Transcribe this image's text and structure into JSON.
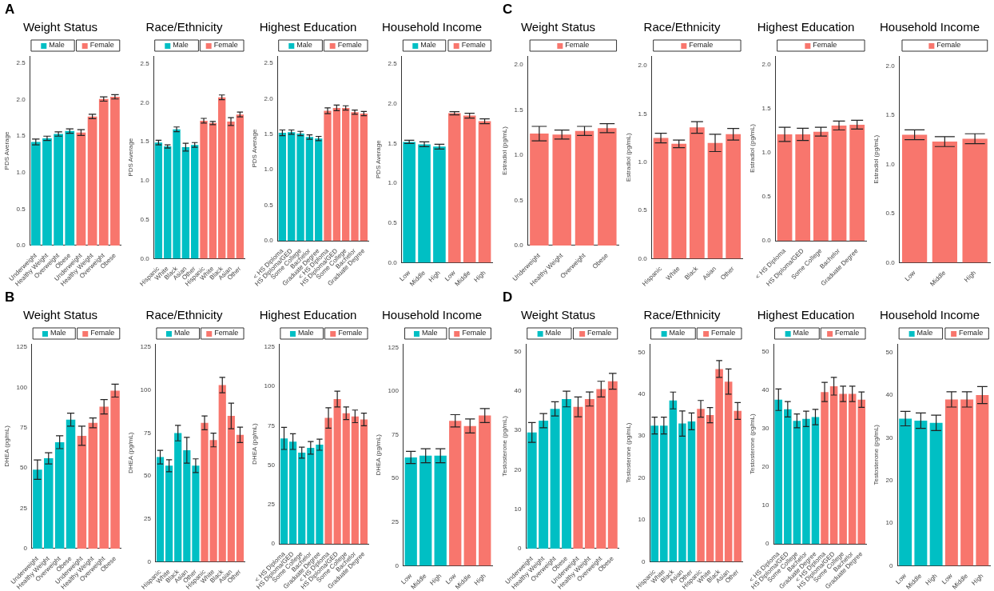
{
  "chart_data": [
    {
      "type": "bar",
      "title": "Weight Status",
      "ylabel": "PDS Average",
      "legend": "top",
      "annotations": [
        "A"
      ],
      "categories": [
        "Underweight",
        "Healthy Weight",
        "Overweight",
        "Obese",
        "Underweight",
        "Healthy Weight",
        "Overweight",
        "Obese"
      ],
      "ylim": [
        0,
        2.6
      ],
      "yticks": [
        {
          "value": 0,
          "label": "0.0"
        },
        0.5,
        {
          "value": 1,
          "label": "1.0"
        },
        1.5,
        {
          "value": 2,
          "label": "2.0"
        },
        2.5
      ],
      "series": [
        {
          "name": "Male",
          "color": "#00bfc4",
          "values": [
            1.42,
            1.47,
            1.53,
            1.57,
            null,
            null,
            null,
            null
          ],
          "errors": [
            0.04,
            0.03,
            0.03,
            0.03,
            null,
            null,
            null,
            null
          ]
        },
        {
          "name": "Female",
          "color": "#f8766d",
          "values": [
            null,
            null,
            null,
            null,
            1.55,
            1.77,
            2.01,
            2.04
          ],
          "errors": [
            null,
            null,
            null,
            null,
            0.04,
            0.03,
            0.03,
            0.03
          ]
        }
      ]
    },
    {
      "type": "bar",
      "title": "Race/Ethnicity",
      "ylabel": "PDS Average",
      "legend": "top",
      "categories": [
        "Hispanic",
        "White",
        "Black",
        "Asian",
        "Other",
        "Hispanic",
        "White",
        "Black",
        "Asian",
        "Other"
      ],
      "ylim": [
        0,
        2.6
      ],
      "yticks": [
        {
          "value": 0,
          "label": "0.0"
        },
        0.5,
        {
          "value": 1,
          "label": "1.0"
        },
        1.5,
        {
          "value": 2,
          "label": "2.0"
        },
        2.5
      ],
      "series": [
        {
          "name": "Male",
          "color": "#00bfc4",
          "values": [
            1.49,
            1.44,
            1.66,
            1.43,
            1.46,
            null,
            null,
            null,
            null,
            null
          ],
          "errors": [
            0.03,
            0.02,
            0.03,
            0.05,
            0.03,
            null,
            null,
            null,
            null,
            null
          ]
        },
        {
          "name": "Female",
          "color": "#f8766d",
          "values": [
            null,
            null,
            null,
            null,
            null,
            1.77,
            1.74,
            2.07,
            1.76,
            1.85
          ],
          "errors": [
            null,
            null,
            null,
            null,
            null,
            0.03,
            0.02,
            0.03,
            0.05,
            0.03
          ]
        }
      ]
    },
    {
      "type": "bar",
      "title": "Highest Education",
      "ylabel": "PDS Average",
      "legend": "top",
      "categories": [
        "< HS Diploma",
        "HS Diploma/GED",
        "Some College",
        "Bachelor",
        "Graduate Degree",
        "< HS Diploma",
        "HS Diploma/GED",
        "Some College",
        "Bachelor",
        "Graduate Degree"
      ],
      "ylim": [
        0,
        2.6
      ],
      "yticks": [
        {
          "value": 0,
          "label": "0.0"
        },
        0.5,
        {
          "value": 1,
          "label": "1.0"
        },
        1.5,
        {
          "value": 2,
          "label": "2.0"
        },
        2.5
      ],
      "series": [
        {
          "name": "Male",
          "color": "#00bfc4",
          "values": [
            1.52,
            1.53,
            1.51,
            1.46,
            1.44,
            null,
            null,
            null,
            null,
            null
          ],
          "errors": [
            0.04,
            0.03,
            0.03,
            0.03,
            0.03,
            null,
            null,
            null,
            null,
            null
          ]
        },
        {
          "name": "Female",
          "color": "#f8766d",
          "values": [
            null,
            null,
            null,
            null,
            null,
            1.83,
            1.87,
            1.87,
            1.81,
            1.79
          ],
          "errors": [
            null,
            null,
            null,
            null,
            null,
            0.04,
            0.04,
            0.03,
            0.03,
            0.03
          ]
        }
      ]
    },
    {
      "type": "bar",
      "title": "Household Income",
      "ylabel": "PDS Average",
      "legend": "top",
      "categories": [
        "Low",
        "Middle",
        "High",
        "Low",
        "Middle",
        "High"
      ],
      "ylim": [
        0,
        2.6
      ],
      "yticks": [
        {
          "value": 0,
          "label": "0.0"
        },
        0.5,
        {
          "value": 1,
          "label": "1.0"
        },
        1.5,
        {
          "value": 2,
          "label": "2.0"
        },
        2.5
      ],
      "series": [
        {
          "name": "Male",
          "color": "#00bfc4",
          "values": [
            1.52,
            1.49,
            1.46,
            null,
            null,
            null
          ],
          "errors": [
            0.02,
            0.03,
            0.03,
            null,
            null,
            null
          ]
        },
        {
          "name": "Female",
          "color": "#f8766d",
          "values": [
            null,
            null,
            null,
            1.88,
            1.85,
            1.78
          ],
          "errors": [
            null,
            null,
            null,
            0.02,
            0.03,
            0.03
          ]
        }
      ]
    },
    {
      "type": "bar",
      "title": "Weight Status",
      "ylabel": "Estradiol (pg/mL)",
      "legend": "top",
      "annotations": [
        "C"
      ],
      "categories": [
        "Underweight",
        "Healthy Weight",
        "Overweight",
        "Obese"
      ],
      "ylim": [
        0,
        2.1
      ],
      "yticks": [
        {
          "value": 0,
          "label": "0.0"
        },
        0.5,
        {
          "value": 1,
          "label": "1.0"
        },
        1.5,
        {
          "value": 2,
          "label": "2.0"
        }
      ],
      "series": [
        {
          "name": "Female",
          "color": "#f8766d",
          "values": [
            1.24,
            1.23,
            1.27,
            1.3
          ],
          "errors": [
            0.08,
            0.05,
            0.05,
            0.05
          ]
        }
      ]
    },
    {
      "type": "bar",
      "title": "Race/Ethnicity",
      "ylabel": "Estradiol (pg/mL)",
      "legend": "top",
      "categories": [
        "Hispanic",
        "White",
        "Black",
        "Asian",
        "Other"
      ],
      "ylim": [
        0,
        2.1
      ],
      "yticks": [
        {
          "value": 0,
          "label": "0.0"
        },
        0.5,
        {
          "value": 1,
          "label": "1.0"
        },
        1.5,
        {
          "value": 2,
          "label": "2.0"
        }
      ],
      "series": [
        {
          "name": "Female",
          "color": "#f8766d",
          "values": [
            1.25,
            1.19,
            1.36,
            1.2,
            1.29
          ],
          "errors": [
            0.05,
            0.04,
            0.06,
            0.09,
            0.06
          ]
        }
      ]
    },
    {
      "type": "bar",
      "title": "Highest Education",
      "ylabel": "Estradiol (pg/mL)",
      "legend": "top",
      "categories": [
        "< HS Diploma",
        "HS Diploma/GED",
        "Some College",
        "Bachelor",
        "Graduate Degree"
      ],
      "ylim": [
        0,
        2.1
      ],
      "yticks": [
        {
          "value": 0,
          "label": "0.0"
        },
        0.5,
        {
          "value": 1,
          "label": "1.0"
        },
        1.5,
        {
          "value": 2,
          "label": "2.0"
        }
      ],
      "series": [
        {
          "name": "Female",
          "color": "#f8766d",
          "values": [
            1.21,
            1.21,
            1.24,
            1.31,
            1.32
          ],
          "errors": [
            0.08,
            0.07,
            0.05,
            0.05,
            0.05
          ]
        }
      ]
    },
    {
      "type": "bar",
      "title": "Household Income",
      "ylabel": "Estradiol (pg/mL)",
      "legend": "top",
      "categories": [
        "Low",
        "Middle",
        "High"
      ],
      "ylim": [
        0,
        2.1
      ],
      "yticks": [
        {
          "value": 0,
          "label": "0.0"
        },
        0.5,
        {
          "value": 1,
          "label": "1.0"
        },
        1.5,
        {
          "value": 2,
          "label": "2.0"
        }
      ],
      "series": [
        {
          "name": "Female",
          "color": "#f8766d",
          "values": [
            1.3,
            1.23,
            1.26
          ],
          "errors": [
            0.05,
            0.05,
            0.05
          ]
        }
      ]
    },
    {
      "type": "bar",
      "title": "Weight Status",
      "ylabel": "DHEA (pg/mL)",
      "legend": "top",
      "annotations": [
        "B"
      ],
      "categories": [
        "Underweight",
        "Healthy Weight",
        "Overweight",
        "Obese",
        "Underweight",
        "Healthy Weight",
        "Overweight",
        "Obese"
      ],
      "ylim": [
        0,
        127
      ],
      "yticks": [
        0,
        25,
        50,
        75,
        100,
        125
      ],
      "series": [
        {
          "name": "Male",
          "color": "#00bfc4",
          "values": [
            49,
            56,
            66,
            80,
            null,
            null,
            null,
            null
          ],
          "errors": [
            6,
            3.5,
            4,
            4,
            null,
            null,
            null,
            null
          ]
        },
        {
          "name": "Female",
          "color": "#f8766d",
          "values": [
            null,
            null,
            null,
            null,
            70,
            78,
            88,
            98
          ],
          "errors": [
            null,
            null,
            null,
            null,
            6,
            3,
            4.5,
            4
          ]
        }
      ]
    },
    {
      "type": "bar",
      "title": "Race/Ethnicity",
      "ylabel": "DHEA (pg/mL)",
      "legend": "top",
      "categories": [
        "Hispanic",
        "White",
        "Black",
        "Asian",
        "Other",
        "Hispanic",
        "White",
        "Black",
        "Asian",
        "Other"
      ],
      "ylim": [
        0,
        127
      ],
      "yticks": [
        0,
        25,
        50,
        75,
        100,
        125
      ],
      "series": [
        {
          "name": "Male",
          "color": "#00bfc4",
          "values": [
            61,
            56,
            75,
            65,
            56,
            null,
            null,
            null,
            null,
            null
          ],
          "errors": [
            4,
            3.5,
            4.5,
            7.5,
            4,
            null,
            null,
            null,
            null,
            null
          ]
        },
        {
          "name": "Female",
          "color": "#f8766d",
          "values": [
            null,
            null,
            null,
            null,
            null,
            81,
            71,
            103,
            85,
            74
          ],
          "errors": [
            null,
            null,
            null,
            null,
            null,
            4,
            4,
            4.5,
            7.5,
            4.5
          ]
        }
      ]
    },
    {
      "type": "bar",
      "title": "Highest Education",
      "ylabel": "DHEA (pg/mL)",
      "legend": "top",
      "categories": [
        "< HS Diploma",
        "HS Diploma/GED",
        "Some College",
        "Bachelor",
        "Graduate Degree",
        "< HS Diploma",
        "HS Diploma/GED",
        "Some College",
        "Bachelor",
        "Graduate Degree"
      ],
      "ylim": [
        0,
        127
      ],
      "yticks": [
        0,
        25,
        50,
        75,
        100,
        125
      ],
      "series": [
        {
          "name": "Male",
          "color": "#00bfc4",
          "values": [
            67,
            65,
            58,
            61,
            63,
            null,
            null,
            null,
            null,
            null
          ],
          "errors": [
            7,
            5,
            3.5,
            4,
            3.5,
            null,
            null,
            null,
            null,
            null
          ]
        },
        {
          "name": "Female",
          "color": "#f8766d",
          "values": [
            null,
            null,
            null,
            null,
            null,
            80,
            92,
            83,
            81,
            79
          ],
          "errors": [
            null,
            null,
            null,
            null,
            null,
            6.5,
            5,
            4,
            4,
            4
          ]
        }
      ]
    },
    {
      "type": "bar",
      "title": "Household Income",
      "ylabel": "DHEA (pg/mL)",
      "legend": "top",
      "categories": [
        "Low",
        "Middle",
        "High",
        "Low",
        "Middle",
        "High"
      ],
      "ylim": [
        0,
        127
      ],
      "yticks": [
        0,
        25,
        50,
        75,
        100,
        125
      ],
      "series": [
        {
          "name": "Male",
          "color": "#00bfc4",
          "values": [
            62,
            63,
            63,
            null,
            null,
            null
          ],
          "errors": [
            3.5,
            4,
            4,
            null,
            null,
            null
          ]
        },
        {
          "name": "Female",
          "color": "#f8766d",
          "values": [
            null,
            null,
            null,
            83,
            80,
            86
          ],
          "errors": [
            null,
            null,
            null,
            3.5,
            4,
            4
          ]
        }
      ]
    },
    {
      "type": "bar",
      "title": "Weight Status",
      "ylabel": "Testosterone (pg/mL)",
      "legend": "top",
      "annotations": [
        "D"
      ],
      "categories": [
        "Underweight",
        "Healthy Weight",
        "Overweight",
        "Obese",
        "Underweight",
        "Healthy Weight",
        "Overweight",
        "Obese"
      ],
      "ylim": [
        0,
        52
      ],
      "yticks": [
        0,
        10,
        20,
        30,
        40,
        50
      ],
      "series": [
        {
          "name": "Male",
          "color": "#00bfc4",
          "values": [
            29.5,
            32.5,
            35.5,
            38,
            null,
            null,
            null,
            null
          ],
          "errors": [
            2.5,
            1.8,
            1.8,
            2,
            null,
            null,
            null,
            null
          ]
        },
        {
          "name": "Female",
          "color": "#f8766d",
          "values": [
            null,
            null,
            null,
            null,
            36,
            38,
            40.5,
            42.5
          ],
          "errors": [
            null,
            null,
            null,
            null,
            2.5,
            1.8,
            2,
            2
          ]
        }
      ]
    },
    {
      "type": "bar",
      "title": "Race/Ethnicity",
      "ylabel": "Testosterone (pg/mL)",
      "legend": "top",
      "categories": [
        "Hispanic",
        "White",
        "Black",
        "Asian",
        "Other",
        "Hispanic",
        "White",
        "Black",
        "Asian",
        "Other"
      ],
      "ylim": [
        0,
        52
      ],
      "yticks": [
        0,
        10,
        20,
        30,
        40,
        50
      ],
      "series": [
        {
          "name": "Male",
          "color": "#00bfc4",
          "values": [
            32.5,
            32.5,
            38.5,
            33,
            33.5,
            null,
            null,
            null,
            null,
            null
          ],
          "errors": [
            2,
            2,
            2,
            3,
            2,
            null,
            null,
            null,
            null,
            null
          ]
        },
        {
          "name": "Female",
          "color": "#f8766d",
          "values": [
            null,
            null,
            null,
            null,
            null,
            36.5,
            35,
            46,
            43,
            36
          ],
          "errors": [
            null,
            null,
            null,
            null,
            null,
            2,
            1.8,
            2,
            3,
            2
          ]
        }
      ]
    },
    {
      "type": "bar",
      "title": "Highest Education",
      "ylabel": "Testosterone (pg/mL)",
      "legend": "top",
      "categories": [
        "< HS Diploma",
        "HS Diploma/GED",
        "Some College",
        "Bachelor",
        "Graduate Degree",
        "< HS Diploma",
        "HS Diploma/GED",
        "Some College",
        "Bachelor",
        "Graduate Degree"
      ],
      "ylim": [
        0,
        52
      ],
      "yticks": [
        0,
        10,
        20,
        30,
        40,
        50
      ],
      "series": [
        {
          "name": "Male",
          "color": "#00bfc4",
          "values": [
            37.5,
            35,
            32,
            32.5,
            33,
            null,
            null,
            null,
            null,
            null
          ],
          "errors": [
            2.8,
            2,
            1.8,
            2,
            2,
            null,
            null,
            null,
            null,
            null
          ]
        },
        {
          "name": "Female",
          "color": "#f8766d",
          "values": [
            null,
            null,
            null,
            null,
            null,
            39.5,
            41,
            39,
            39,
            37.5
          ],
          "errors": [
            null,
            null,
            null,
            null,
            null,
            2.5,
            2.3,
            2,
            2,
            2
          ]
        }
      ]
    },
    {
      "type": "bar",
      "title": "Household Income",
      "ylabel": "Testosterone (pg/mL)",
      "legend": "top",
      "categories": [
        "Low",
        "Middle",
        "High",
        "Low",
        "Middle",
        "High"
      ],
      "ylim": [
        0,
        52
      ],
      "yticks": [
        0,
        10,
        20,
        30,
        40,
        50
      ],
      "series": [
        {
          "name": "Male",
          "color": "#00bfc4",
          "values": [
            34.5,
            34,
            33.5,
            null,
            null,
            null
          ],
          "errors": [
            1.7,
            1.8,
            1.8,
            null,
            null,
            null
          ]
        },
        {
          "name": "Female",
          "color": "#f8766d",
          "values": [
            null,
            null,
            null,
            39,
            39,
            40
          ],
          "errors": [
            null,
            null,
            null,
            1.8,
            1.8,
            2
          ]
        }
      ]
    }
  ]
}
